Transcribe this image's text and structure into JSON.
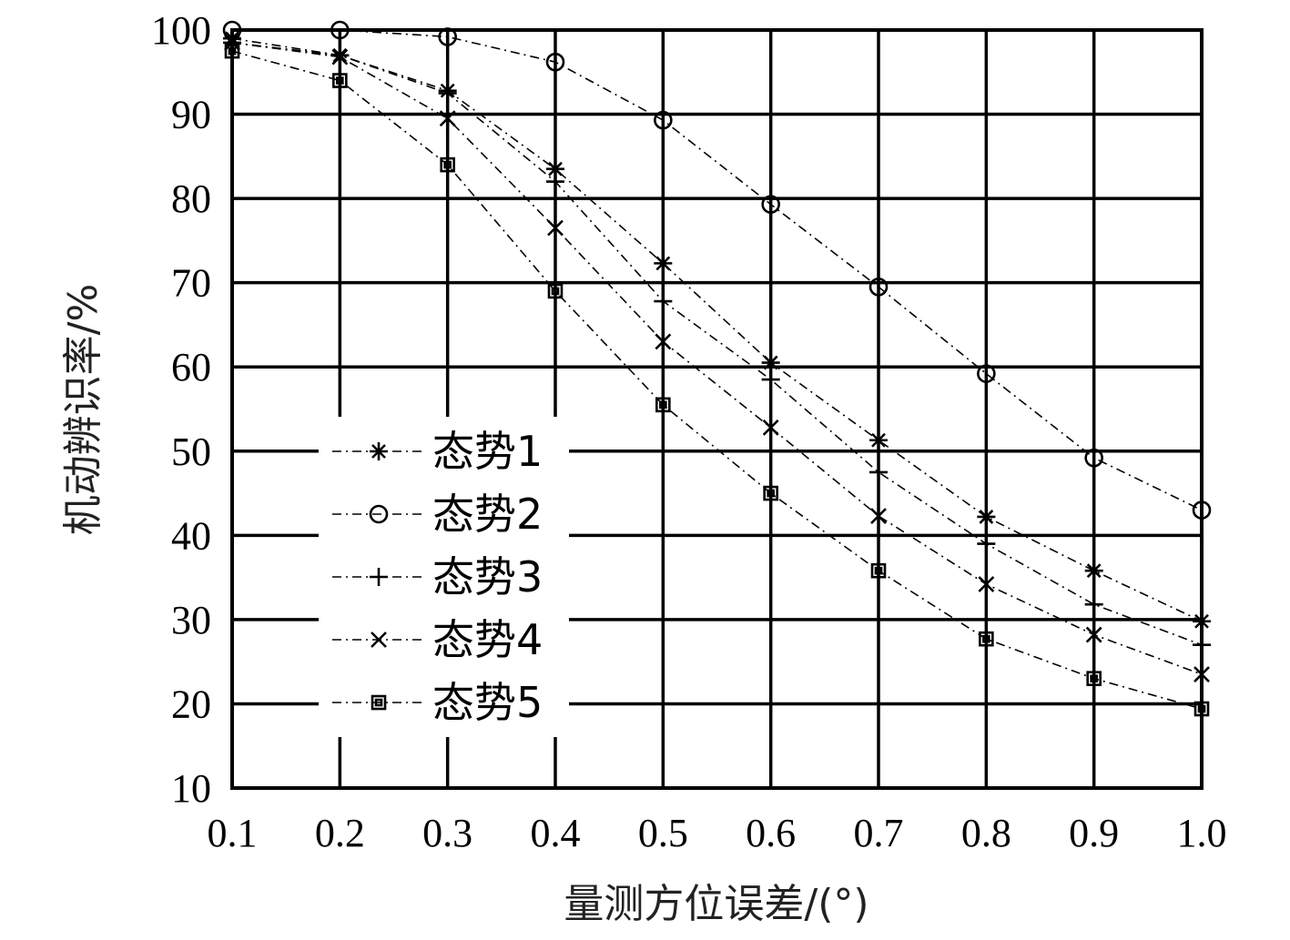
{
  "chart_data": {
    "type": "line",
    "title": "",
    "xlabel": "量测方位误差/(°)",
    "ylabel": "机动辨识率/%",
    "xlim": [
      0.1,
      1.0
    ],
    "ylim": [
      10,
      100
    ],
    "x_ticks": [
      "0.1",
      "0.2",
      "0.3",
      "0.4",
      "0.5",
      "0.6",
      "0.7",
      "0.8",
      "0.9",
      "1.0"
    ],
    "y_ticks": [
      "10",
      "20",
      "30",
      "40",
      "50",
      "60",
      "70",
      "80",
      "90",
      "100"
    ],
    "grid": true,
    "legend_position": "lower-left",
    "x": [
      0.1,
      0.2,
      0.3,
      0.4,
      0.5,
      0.6,
      0.7,
      0.8,
      0.9,
      1.0
    ],
    "series": [
      {
        "name": "态势1",
        "marker": "asterisk",
        "values": [
          99.0,
          97.0,
          92.8,
          83.5,
          72.3,
          60.5,
          51.3,
          42.2,
          35.8,
          29.8
        ]
      },
      {
        "name": "态势2",
        "marker": "circle",
        "values": [
          100.0,
          100.0,
          99.2,
          96.2,
          89.3,
          79.3,
          69.5,
          59.2,
          49.2,
          43.0
        ]
      },
      {
        "name": "态势3",
        "marker": "plus",
        "values": [
          98.5,
          97.0,
          92.5,
          82.0,
          67.8,
          58.5,
          47.5,
          39.0,
          31.8,
          27.0
        ]
      },
      {
        "name": "态势4",
        "marker": "cross",
        "values": [
          98.5,
          96.8,
          89.5,
          76.5,
          63.0,
          52.8,
          42.3,
          34.2,
          28.2,
          23.5
        ]
      },
      {
        "name": "态势5",
        "marker": "square",
        "values": [
          97.5,
          94.0,
          84.0,
          69.0,
          55.5,
          45.0,
          35.8,
          27.7,
          23.0,
          19.4
        ]
      }
    ]
  }
}
